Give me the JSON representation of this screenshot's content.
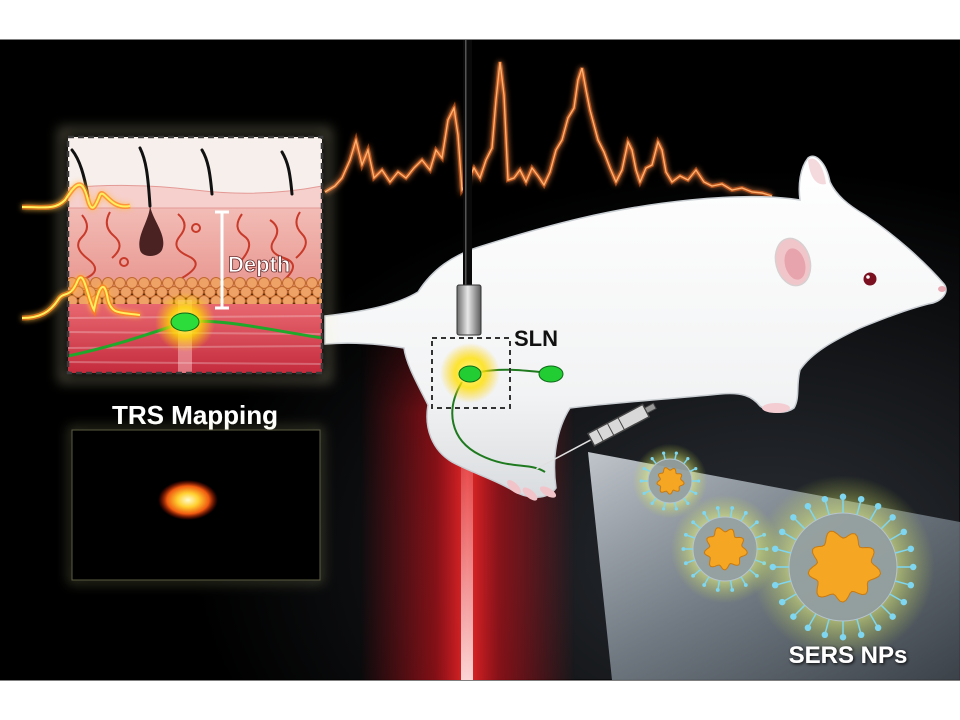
{
  "labels": {
    "depth": "Depth",
    "sln": "SLN",
    "trs_mapping": "TRS Mapping",
    "sers_nps": "SERS NPs"
  },
  "colors": {
    "background": "#000000",
    "spectrum": "#ff7a1a",
    "beam": "#e0101a",
    "lymph_node": "#22cc33",
    "node_glow": "#ffee33",
    "nanoparticle_core": "#f5a623",
    "ligand": "#7fd6f0"
  },
  "icons": [
    "probe",
    "syringe",
    "rat",
    "skin-cross-section",
    "nanoparticle"
  ]
}
